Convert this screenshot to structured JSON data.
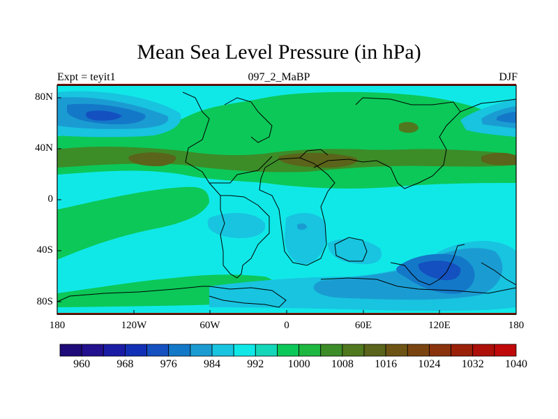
{
  "title": "Mean Sea Level Pressure (in hPa)",
  "left_label": "Expt = teyit1",
  "center_label": "097_2_MaBP",
  "right_label": "DJF",
  "map": {
    "lon_ticks": [
      "180",
      "120W",
      "60W",
      "0",
      "60E",
      "120E",
      "180"
    ],
    "lat_ticks": [
      "80N",
      "40N",
      "0",
      "40S",
      "80S"
    ]
  },
  "colorbar": {
    "labels": [
      "960",
      "968",
      "976",
      "984",
      "992",
      "1000",
      "1008",
      "1016",
      "1024",
      "1032",
      "1040"
    ],
    "colors": [
      "#1e0a78",
      "#22108e",
      "#1a1ca6",
      "#1230b6",
      "#1450c0",
      "#1478c8",
      "#1a9cd2",
      "#18c4e0",
      "#10e8e8",
      "#14d6b8",
      "#0cc858",
      "#1eb840",
      "#3c8c28",
      "#50781e",
      "#5a641a",
      "#6e5414",
      "#7a4410",
      "#8a320c",
      "#9a2008",
      "#ac1008",
      "#c00a0a"
    ],
    "unit": "hPa"
  }
}
